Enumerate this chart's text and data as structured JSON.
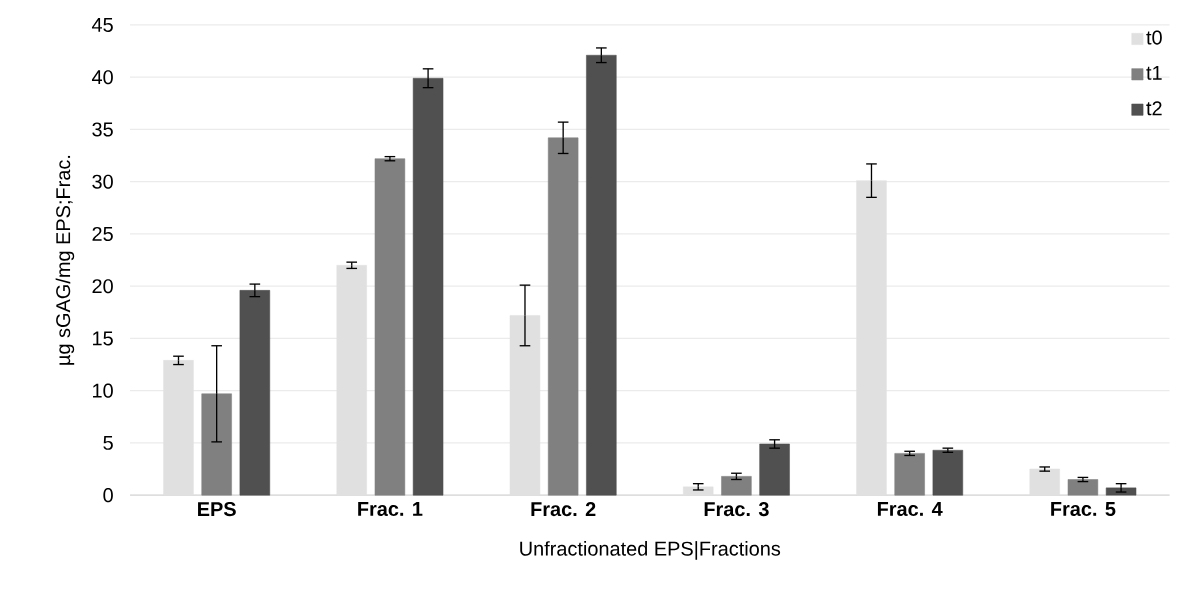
{
  "chart_data": {
    "type": "bar",
    "xlabel": "Unfractionated EPS|Fractions",
    "ylabel": "µg sGAG/mg EPS;Frac.",
    "categories": [
      "EPS",
      "Frac. 1",
      "Frac. 2",
      "Frac. 3",
      "Frac. 4",
      "Frac. 5"
    ],
    "series": [
      {
        "name": "t0",
        "color": "#e0e0e0",
        "values": [
          12.9,
          22.0,
          17.2,
          0.8,
          30.1,
          2.5
        ],
        "errors": [
          0.4,
          0.3,
          2.9,
          0.3,
          1.6,
          0.2
        ]
      },
      {
        "name": "t1",
        "color": "#808080",
        "values": [
          9.7,
          32.2,
          34.2,
          1.8,
          4.0,
          1.5
        ],
        "errors": [
          4.6,
          0.2,
          1.5,
          0.3,
          0.2,
          0.2
        ]
      },
      {
        "name": "t2",
        "color": "#505050",
        "values": [
          19.6,
          39.9,
          42.1,
          4.9,
          4.3,
          0.7
        ],
        "errors": [
          0.6,
          0.9,
          0.7,
          0.4,
          0.2,
          0.4
        ]
      }
    ],
    "ylim": [
      0,
      45
    ],
    "yticks": [
      0,
      5,
      10,
      15,
      20,
      25,
      30,
      35,
      40,
      45
    ],
    "grid": "y",
    "legend": "top right"
  }
}
